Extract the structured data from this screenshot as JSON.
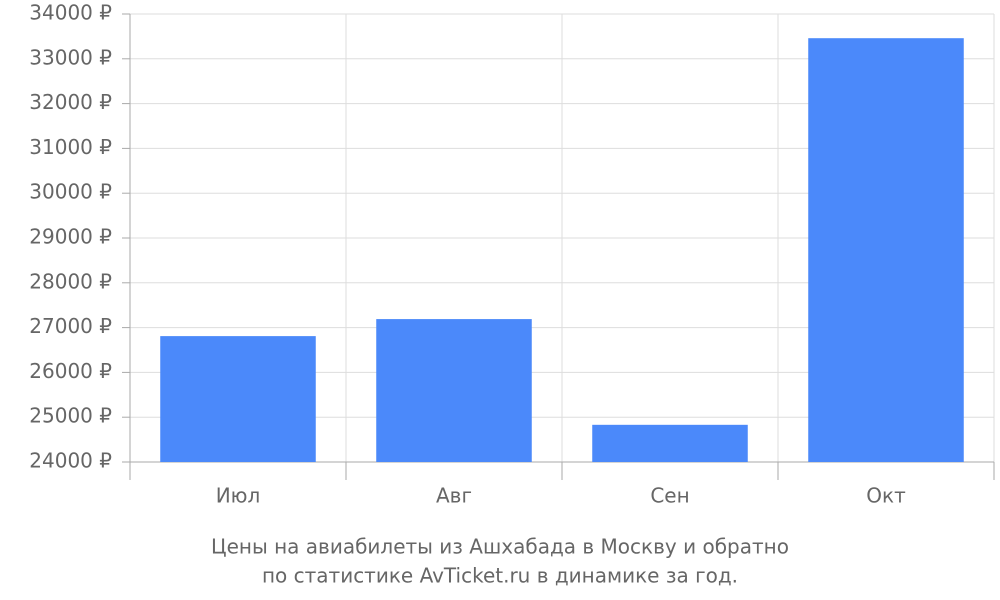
{
  "chart_data": {
    "type": "bar",
    "categories": [
      "Июл",
      "Авг",
      "Сен",
      "Окт"
    ],
    "values": [
      26810,
      27190,
      24830,
      33460
    ],
    "color": "#4b89fa",
    "ylim": [
      24000,
      34000
    ],
    "yticks": [
      {
        "value": 24000,
        "label": "24000 ₽"
      },
      {
        "value": 25000,
        "label": "25000 ₽"
      },
      {
        "value": 26000,
        "label": "26000 ₽"
      },
      {
        "value": 27000,
        "label": "27000 ₽"
      },
      {
        "value": 28000,
        "label": "28000 ₽"
      },
      {
        "value": 29000,
        "label": "29000 ₽"
      },
      {
        "value": 30000,
        "label": "30000 ₽"
      },
      {
        "value": 31000,
        "label": "31000 ₽"
      },
      {
        "value": 32000,
        "label": "32000 ₽"
      },
      {
        "value": 33000,
        "label": "33000 ₽"
      },
      {
        "value": 34000,
        "label": "34000 ₽"
      }
    ],
    "grid": true,
    "caption": [
      "Цены на авиабилеты из Ашхабада в Москву и обратно",
      "по статистике AvTicket.ru в динамике за год."
    ]
  }
}
